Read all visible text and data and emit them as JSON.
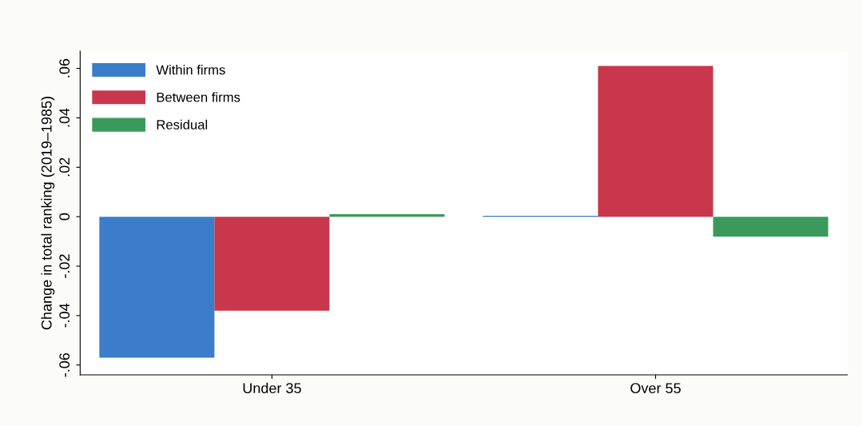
{
  "chart_data": {
    "type": "bar",
    "ylabel": "Change in total ranking (2019–1985)",
    "categories": [
      "Under 35",
      "Over 55"
    ],
    "series": [
      {
        "name": "Within firms",
        "color": "#3b7dc8",
        "values": [
          -0.057,
          0.0004
        ]
      },
      {
        "name": "Between firms",
        "color": "#c8374b",
        "values": [
          -0.038,
          0.061
        ]
      },
      {
        "name": "Residual",
        "color": "#3a9a5c",
        "values": [
          0.001,
          -0.008
        ]
      }
    ],
    "ylim": [
      -0.064,
      0.067
    ],
    "yticks": [
      {
        "value": -0.06,
        "label": "-.06"
      },
      {
        "value": -0.04,
        "label": "-.04"
      },
      {
        "value": -0.02,
        "label": "-.02"
      },
      {
        "value": 0,
        "label": "0"
      },
      {
        "value": 0.02,
        "label": ".02"
      },
      {
        "value": 0.04,
        "label": ".04"
      },
      {
        "value": 0.06,
        "label": ".06"
      }
    ],
    "grid": false,
    "legend": "top left"
  }
}
